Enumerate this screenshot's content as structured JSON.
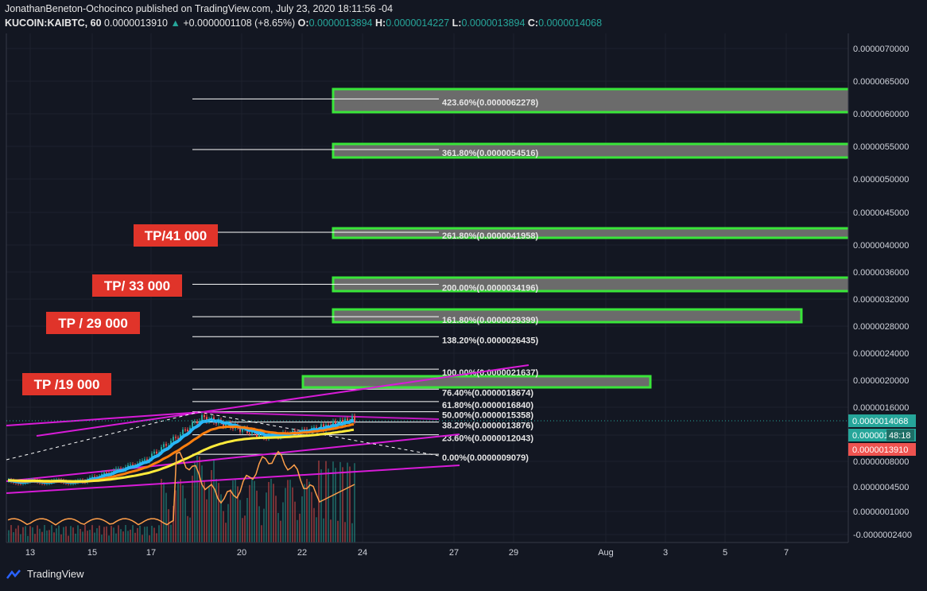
{
  "header": {
    "publish_line": "JonathanBeneton-Ochocinco published on TradingView.com, July 23, 2020 18:11:56 -04",
    "symbol": "KUCOIN:KAIBTC, 60",
    "last": "0.0000013910",
    "change_arrow": "▲",
    "change": "+0.0000001108 (+8.65%)",
    "open_label": "O:",
    "open": "0.0000013894",
    "high_label": "H:",
    "high": "0.0000014227",
    "low_label": "L:",
    "low": "0.0000013894",
    "close_label": "C:",
    "close": "0.0000014068"
  },
  "footer": {
    "brand": "TradingView"
  },
  "colors": {
    "background": "#131722",
    "grid": "#1e222d",
    "box_border": "#39e639",
    "box_fill": "#6b6b6b",
    "tp_label": "#e0342a",
    "trend_line": "#d81bd8",
    "ema_fast": "#29b6f6",
    "ema_mid": "#ff7f0e",
    "ema_slow": "#ffeb3b",
    "candle_up": "#26a69a",
    "candle_down": "#ef5350",
    "rsi": "#ff9f4a",
    "price_tag_green": "#26a69a",
    "price_tag_red": "#ef5350"
  },
  "chart_data": {
    "type": "line",
    "title": "KUCOIN:KAIBTC, 60",
    "ylim": [
      -2.6e-07,
      7.2e-07
    ],
    "x_ticks": [
      "13",
      "15",
      "17",
      "20",
      "22",
      "24",
      "27",
      "29",
      "Aug",
      "3",
      "5",
      "7"
    ],
    "y_ticks": [
      "0.0000070000",
      "0.0000065000",
      "0.0000060000",
      "0.0000055000",
      "0.0000050000",
      "0.0000045000",
      "0.0000040000",
      "0.0000036000",
      "0.0000032000",
      "0.0000028000",
      "0.0000024000",
      "0.0000020000",
      "0.0000016000",
      "0.0000012000",
      "0.0000008000",
      "0.0000004500",
      "0.0000001000",
      "-0.0000002400"
    ],
    "price_tags": [
      {
        "text": "0.0000014068",
        "color": "#26a69a"
      },
      {
        "text": "0.0000014",
        "extra": "48:18",
        "color": "#26a69a"
      },
      {
        "text": "0.0000013910",
        "color": "#ef5350"
      }
    ],
    "fib_levels": [
      {
        "label": "423.60%(0.0000062278)",
        "value": 6.2278e-06
      },
      {
        "label": "361.80%(0.0000054516)",
        "value": 5.4516e-06
      },
      {
        "label": "261.80%(0.0000041958)",
        "value": 4.1958e-06
      },
      {
        "label": "200.00%(0.0000034196)",
        "value": 3.4196e-06
      },
      {
        "label": "161.80%(0.0000029399)",
        "value": 2.9399e-06
      },
      {
        "label": "138.20%(0.0000026435)",
        "value": 2.6435e-06
      },
      {
        "label": "100.00%(0.0000021637)",
        "value": 2.1637e-06
      },
      {
        "label": "76.40%(0.0000018674)",
        "value": 1.8674e-06
      },
      {
        "label": "61.80%(0.0000016840)",
        "value": 1.684e-06
      },
      {
        "label": "50.00%(0.0000015358)",
        "value": 1.5358e-06
      },
      {
        "label": "38.20%(0.0000013876)",
        "value": 1.3876e-06
      },
      {
        "label": "23.60%(0.0000012043)",
        "value": 1.2043e-06
      },
      {
        "label": "0.00%(0.0000009079)",
        "value": 9.079e-07
      }
    ],
    "tp_labels": [
      "TP/41 000",
      "TP/ 33 000",
      "TP / 29 000",
      "TP /19 000"
    ],
    "rsi_panel": true
  }
}
